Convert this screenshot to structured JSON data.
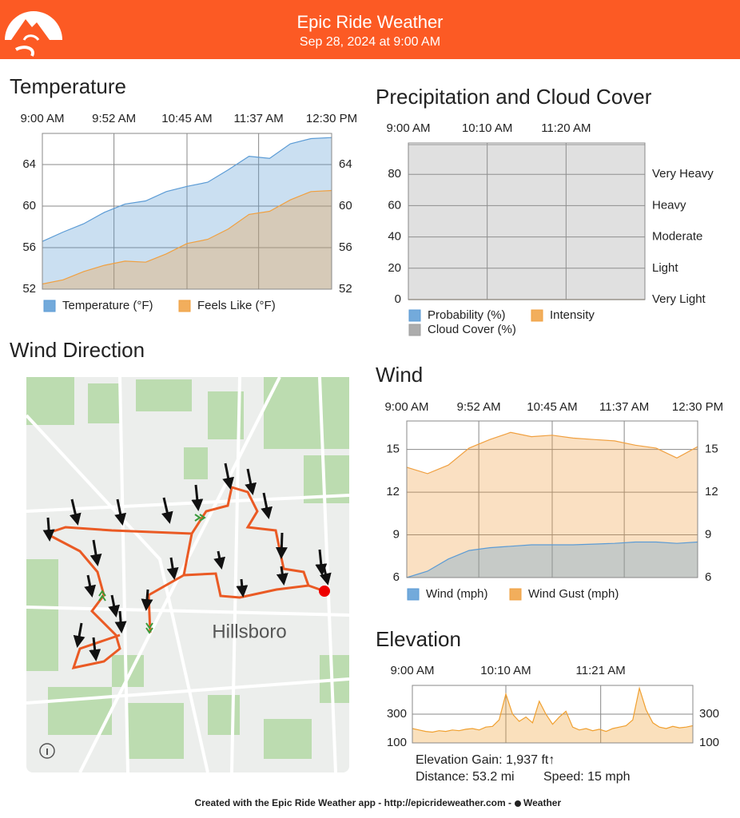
{
  "header": {
    "title": "Epic Ride Weather",
    "subtitle": "Sep 28, 2024 at 9:00 AM"
  },
  "chart_data": [
    {
      "type": "area",
      "title": "Temperature",
      "x": [
        "9:00 AM",
        "9:15 AM",
        "9:30 AM",
        "9:45 AM",
        "10:00 AM",
        "10:15 AM",
        "10:30 AM",
        "10:45 AM",
        "11:00 AM",
        "11:15 AM",
        "11:30 AM",
        "11:45 AM",
        "12:00 PM",
        "12:15 PM",
        "12:30 PM"
      ],
      "xlim": [
        "9:00 AM",
        "12:30 PM"
      ],
      "xticks": [
        "9:00 AM",
        "9:52 AM",
        "10:45 AM",
        "11:37 AM",
        "12:30 PM"
      ],
      "ylim": [
        52,
        67
      ],
      "yticks": [
        52,
        56,
        60,
        64
      ],
      "y2lim": [
        52,
        67
      ],
      "y2ticks": [
        52,
        56,
        60,
        64
      ],
      "grid": true,
      "legend": "bottom-left",
      "series": [
        {
          "name": "Temperature (°F)",
          "color": "#5b9bd5",
          "values": [
            56.6,
            57.5,
            58.3,
            59.4,
            60.2,
            60.5,
            61.4,
            61.9,
            62.3,
            63.5,
            64.8,
            64.6,
            66,
            66.5,
            66.6
          ]
        },
        {
          "name": "Feels Like (°F)",
          "color": "#f0a040",
          "values": [
            52.5,
            52.9,
            53.7,
            54.3,
            54.7,
            54.6,
            55.4,
            56.4,
            56.8,
            57.8,
            59.2,
            59.5,
            60.6,
            61.4,
            61.5
          ]
        }
      ]
    },
    {
      "type": "area",
      "title": "Precipitation and Cloud Cover",
      "x": [
        "9:00 AM",
        "9:30 AM",
        "10:00 AM",
        "10:30 AM",
        "11:00 AM",
        "11:30 AM",
        "12:00 PM",
        "12:30 PM"
      ],
      "xlim": [
        "9:00 AM",
        "12:30 PM"
      ],
      "xticks": [
        "9:00 AM",
        "10:10 AM",
        "11:20 AM"
      ],
      "ylim": [
        0,
        100
      ],
      "yticks": [
        0,
        20,
        40,
        60,
        80
      ],
      "y2lim": [
        0,
        100
      ],
      "y2ticks": [
        {
          "value": 0,
          "label": "Very Light"
        },
        {
          "value": 20,
          "label": "Light"
        },
        {
          "value": 40,
          "label": "Moderate"
        },
        {
          "value": 60,
          "label": "Heavy"
        },
        {
          "value": 80,
          "label": "Very Heavy"
        }
      ],
      "grid": true,
      "legend": "bottom-left",
      "series": [
        {
          "name": "Cloud Cover (%)",
          "color": "#9e9e9e",
          "values": [
            99,
            99,
            99,
            99,
            99,
            99,
            99,
            99
          ]
        },
        {
          "name": "Probability (%)",
          "color": "#5b9bd5",
          "values": [
            0,
            0,
            0,
            0,
            0,
            0,
            0,
            0
          ]
        },
        {
          "name": "Intensity",
          "color": "#f0a040",
          "values": [
            0,
            0,
            0,
            0,
            0,
            0,
            0,
            0
          ]
        }
      ]
    },
    {
      "type": "area",
      "title": "Wind",
      "x": [
        "9:00 AM",
        "9:15 AM",
        "9:30 AM",
        "9:45 AM",
        "10:00 AM",
        "10:15 AM",
        "10:30 AM",
        "10:45 AM",
        "11:00 AM",
        "11:15 AM",
        "11:30 AM",
        "11:45 AM",
        "12:00 PM",
        "12:15 PM",
        "12:30 PM"
      ],
      "xlim": [
        "9:00 AM",
        "12:30 PM"
      ],
      "xticks": [
        "9:00 AM",
        "9:52 AM",
        "10:45 AM",
        "11:37 AM",
        "12:30 PM"
      ],
      "ylim": [
        6,
        17
      ],
      "yticks": [
        6,
        9,
        12,
        15
      ],
      "y2lim": [
        6,
        17
      ],
      "y2ticks": [
        6,
        9,
        12,
        15
      ],
      "grid": true,
      "legend": "bottom-left",
      "series": [
        {
          "name": "Wind Gust (mph)",
          "color": "#f0a040",
          "values": [
            13.75,
            13.3,
            13.9,
            15.1,
            15.7,
            16.2,
            15.9,
            16,
            15.8,
            15.7,
            15.6,
            15.3,
            15.1,
            14.4,
            15.2
          ]
        },
        {
          "name": "Wind (mph)",
          "color": "#5b9bd5",
          "values": [
            6,
            6.45,
            7.3,
            7.9,
            8.1,
            8.2,
            8.3,
            8.3,
            8.3,
            8.35,
            8.4,
            8.5,
            8.5,
            8.4,
            8.5
          ]
        }
      ]
    },
    {
      "type": "area",
      "title": "Elevation",
      "x": [
        "9:00 AM",
        "9:05 AM",
        "9:10 AM",
        "9:15 AM",
        "9:20 AM",
        "9:25 AM",
        "9:30 AM",
        "9:35 AM",
        "9:40 AM",
        "9:45 AM",
        "9:50 AM",
        "9:55 AM",
        "10:00 AM",
        "10:05 AM",
        "10:10 AM",
        "10:15 AM",
        "10:20 AM",
        "10:25 AM",
        "10:30 AM",
        "10:35 AM",
        "10:40 AM",
        "10:45 AM",
        "10:50 AM",
        "10:55 AM",
        "11:00 AM",
        "11:05 AM",
        "11:10 AM",
        "11:15 AM",
        "11:20 AM",
        "11:25 AM",
        "11:30 AM",
        "11:35 AM",
        "11:40 AM",
        "11:45 AM",
        "11:50 AM",
        "11:55 AM",
        "12:00 PM",
        "12:05 PM",
        "12:10 PM",
        "12:15 PM",
        "12:20 PM",
        "12:25 PM",
        "12:30 PM"
      ],
      "xlim": [
        "9:00 AM",
        "12:30 PM"
      ],
      "xticks": [
        "9:00 AM",
        "10:10 AM",
        "11:21 AM"
      ],
      "ylim": [
        100,
        500
      ],
      "yticks": [
        100,
        300
      ],
      "y2lim": [
        100,
        500
      ],
      "y2ticks": [
        100,
        300
      ],
      "grid": true,
      "color": "#f0a030",
      "values": [
        200,
        190,
        180,
        175,
        185,
        180,
        190,
        185,
        195,
        200,
        190,
        210,
        215,
        260,
        440,
        300,
        250,
        280,
        240,
        390,
        300,
        230,
        280,
        320,
        210,
        190,
        200,
        185,
        195,
        180,
        200,
        210,
        220,
        260,
        480,
        330,
        240,
        210,
        200,
        215,
        205,
        210,
        220
      ]
    }
  ],
  "map": {
    "title": "Wind Direction",
    "label": "Hillsboro"
  },
  "stats": {
    "gain": "Elevation Gain: 1,937 ft↑",
    "distance": "Distance: 53.2 mi",
    "speed": "Speed: 15 mph"
  },
  "footer": {
    "text": "Created with the Epic Ride Weather app - http://epicrideweather.com - ",
    "brand": "Weather"
  }
}
